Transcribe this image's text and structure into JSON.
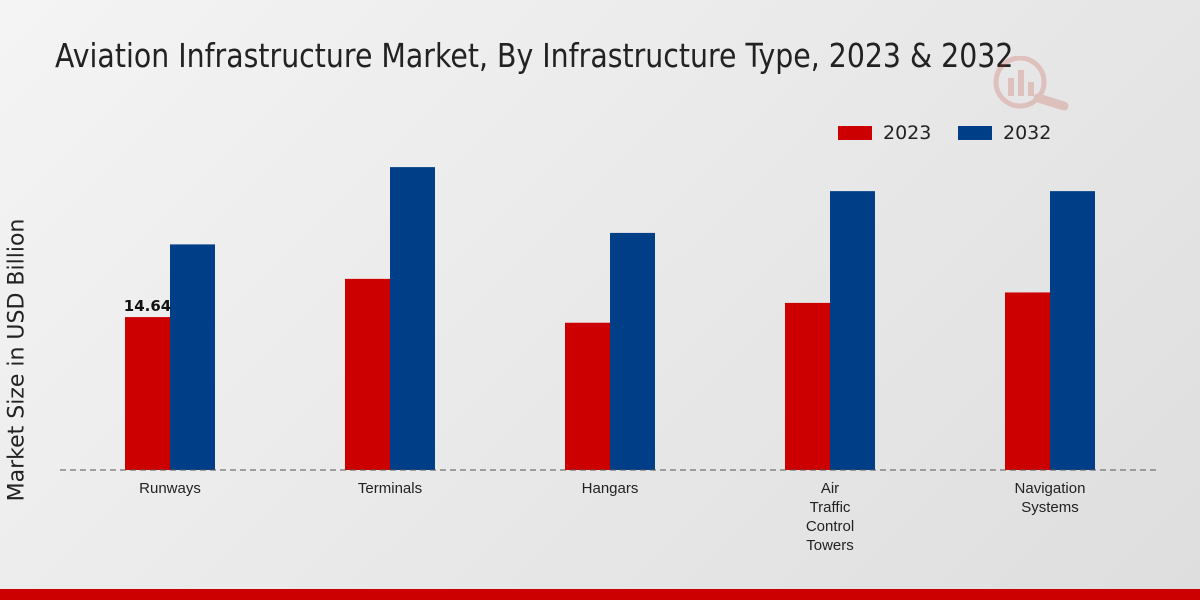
{
  "chart_data": {
    "type": "bar",
    "title": "Aviation Infrastructure Market, By Infrastructure Type, 2023 & 2032",
    "xlabel": "",
    "ylabel": "Market Size in USD Billion",
    "categories": [
      "Runways",
      "Terminals",
      "Hangars",
      "Air\nTraffic\nControl\nTowers",
      "Navigation\nSystems"
    ],
    "series": [
      {
        "name": "2023",
        "color": "#cc0000",
        "values": [
          14.64,
          18.3,
          14.1,
          16.0,
          17.0
        ]
      },
      {
        "name": "2032",
        "color": "#003f88",
        "values": [
          21.6,
          29.0,
          22.7,
          26.7,
          26.7
        ]
      }
    ],
    "data_labels": [
      {
        "series": 0,
        "index": 0,
        "text": "14.64"
      }
    ],
    "ylim": [
      0,
      45
    ],
    "legend_position": "top-right",
    "grid": false
  }
}
